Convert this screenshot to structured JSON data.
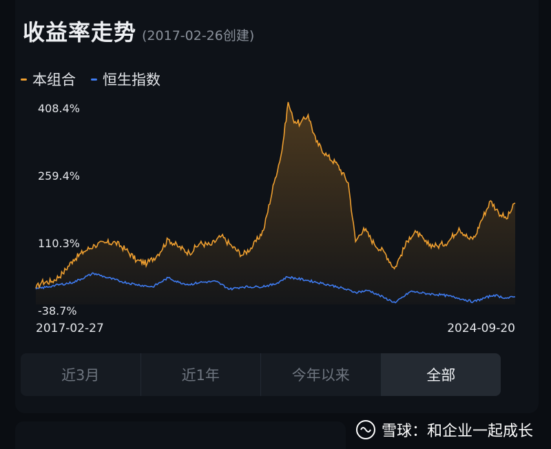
{
  "header": {
    "title": "收益率走势",
    "created": "(2017-02-26创建)"
  },
  "legend": [
    {
      "label": "本组合",
      "color": "#f0a030"
    },
    {
      "label": "恒生指数",
      "color": "#3f7cf2"
    }
  ],
  "tabs": [
    {
      "label": "近3月",
      "active": false
    },
    {
      "label": "近1年",
      "active": false
    },
    {
      "label": "今年以来",
      "active": false
    },
    {
      "label": "全部",
      "active": true
    }
  ],
  "watermark": {
    "text": "雪球：和企业一起成长"
  },
  "chart_data": {
    "type": "line",
    "x_start": "2017-02-27",
    "x_end": "2024-09-20",
    "y_ticks": [
      "408.4%",
      "259.4%",
      "110.3%",
      "-38.7%"
    ],
    "y_tick_values": [
      408.4,
      259.4,
      110.3,
      -38.7
    ],
    "ylim": [
      -38.7,
      408.4
    ],
    "grid": false,
    "legend_position": "top-left",
    "series": [
      {
        "name": "本组合",
        "color": "#f0a030",
        "fill": true,
        "points": [
          [
            "2017-02-27",
            -3
          ],
          [
            "2017-04-01",
            10
          ],
          [
            "2017-06-01",
            12
          ],
          [
            "2017-08-01",
            30
          ],
          [
            "2017-10-01",
            60
          ],
          [
            "2017-12-01",
            78
          ],
          [
            "2018-02-01",
            92
          ],
          [
            "2018-04-01",
            97
          ],
          [
            "2018-06-01",
            98
          ],
          [
            "2018-08-01",
            82
          ],
          [
            "2018-10-01",
            58
          ],
          [
            "2018-12-01",
            52
          ],
          [
            "2019-02-01",
            72
          ],
          [
            "2019-04-01",
            105
          ],
          [
            "2019-06-01",
            88
          ],
          [
            "2019-08-01",
            75
          ],
          [
            "2019-10-01",
            96
          ],
          [
            "2019-12-01",
            92
          ],
          [
            "2020-02-01",
            112
          ],
          [
            "2020-04-01",
            90
          ],
          [
            "2020-06-01",
            70
          ],
          [
            "2020-08-01",
            90
          ],
          [
            "2020-10-01",
            125
          ],
          [
            "2020-12-01",
            230
          ],
          [
            "2021-01-15",
            300
          ],
          [
            "2021-02-20",
            408
          ],
          [
            "2021-03-20",
            370
          ],
          [
            "2021-05-01",
            360
          ],
          [
            "2021-06-15",
            380
          ],
          [
            "2021-08-01",
            320
          ],
          [
            "2021-10-01",
            290
          ],
          [
            "2021-12-01",
            270
          ],
          [
            "2022-02-01",
            230
          ],
          [
            "2022-03-15",
            100
          ],
          [
            "2022-05-01",
            130
          ],
          [
            "2022-07-01",
            95
          ],
          [
            "2022-09-01",
            75
          ],
          [
            "2022-10-25",
            40
          ],
          [
            "2022-12-01",
            70
          ],
          [
            "2023-01-20",
            110
          ],
          [
            "2023-03-01",
            120
          ],
          [
            "2023-05-01",
            95
          ],
          [
            "2023-07-01",
            90
          ],
          [
            "2023-09-01",
            100
          ],
          [
            "2023-11-01",
            130
          ],
          [
            "2024-01-01",
            105
          ],
          [
            "2024-02-01",
            110
          ],
          [
            "2024-03-01",
            140
          ],
          [
            "2024-05-01",
            190
          ],
          [
            "2024-06-15",
            165
          ],
          [
            "2024-08-01",
            150
          ],
          [
            "2024-09-20",
            185
          ]
        ]
      },
      {
        "name": "恒生指数",
        "color": "#3f7cf2",
        "fill": false,
        "points": [
          [
            "2017-02-27",
            -5
          ],
          [
            "2017-06-01",
            2
          ],
          [
            "2017-10-01",
            10
          ],
          [
            "2018-01-26",
            30
          ],
          [
            "2018-04-01",
            22
          ],
          [
            "2018-07-01",
            12
          ],
          [
            "2018-10-01",
            5
          ],
          [
            "2019-01-01",
            0
          ],
          [
            "2019-04-01",
            20
          ],
          [
            "2019-06-01",
            10
          ],
          [
            "2019-08-01",
            5
          ],
          [
            "2019-10-01",
            10
          ],
          [
            "2020-01-01",
            12
          ],
          [
            "2020-03-20",
            -5
          ],
          [
            "2020-06-01",
            0
          ],
          [
            "2020-09-01",
            0
          ],
          [
            "2020-12-01",
            5
          ],
          [
            "2021-02-15",
            22
          ],
          [
            "2021-06-01",
            15
          ],
          [
            "2021-09-01",
            8
          ],
          [
            "2021-12-01",
            0
          ],
          [
            "2022-03-15",
            -12
          ],
          [
            "2022-06-01",
            -8
          ],
          [
            "2022-09-01",
            -25
          ],
          [
            "2022-10-31",
            -35
          ],
          [
            "2023-01-27",
            -10
          ],
          [
            "2023-05-01",
            -15
          ],
          [
            "2023-08-01",
            -18
          ],
          [
            "2023-11-01",
            -25
          ],
          [
            "2024-01-22",
            -33
          ],
          [
            "2024-05-20",
            -18
          ],
          [
            "2024-08-01",
            -25
          ],
          [
            "2024-09-20",
            -22
          ]
        ]
      }
    ]
  }
}
